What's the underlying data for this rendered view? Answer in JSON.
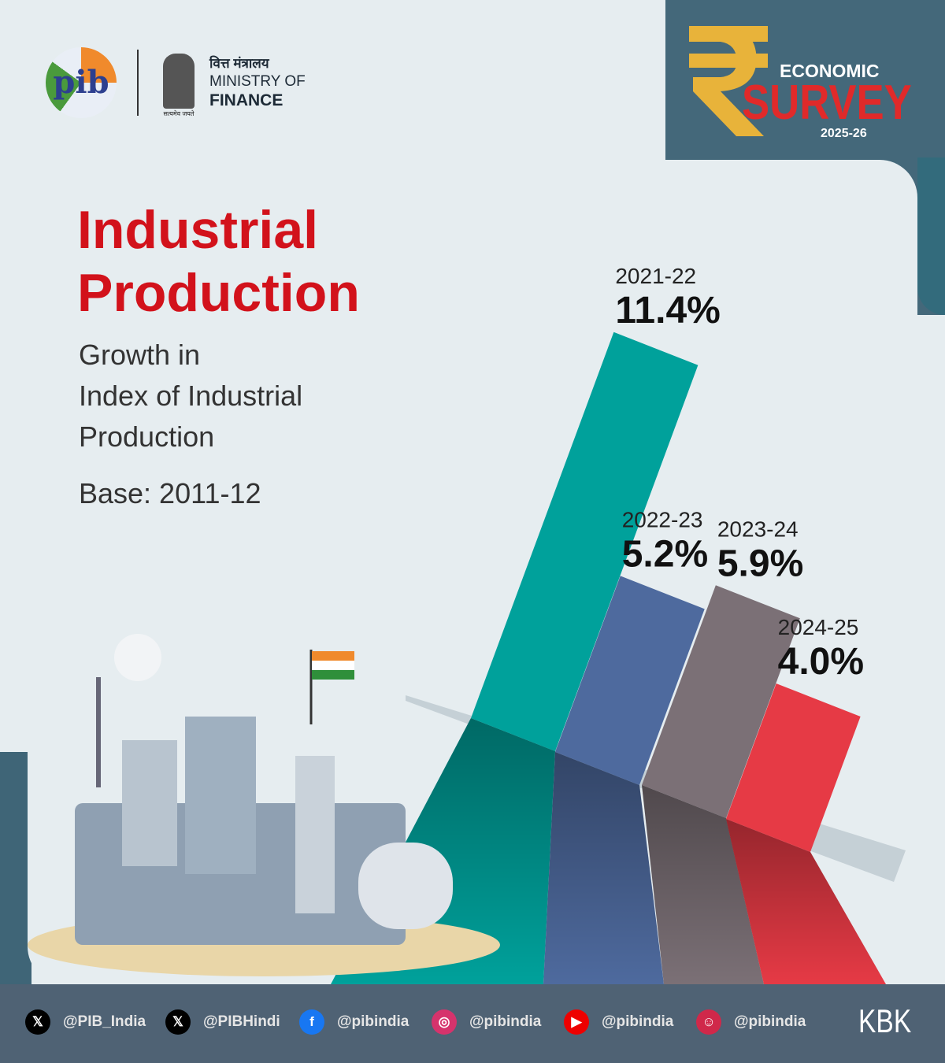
{
  "header": {
    "pib_logo": "pib",
    "ministry_hindi": "वित्त मंत्रालय",
    "ministry_line1": "MINISTRY OF",
    "ministry_line2": "FINANCE",
    "emblem_caption": "सत्यमेव जयते",
    "badge": {
      "line1": "ECONOMIC",
      "line2": "SURVEY",
      "year": "2025-26",
      "icon": "rupee-icon"
    }
  },
  "title": {
    "line1": "Industrial",
    "line2": "Production"
  },
  "subtitle": {
    "line1": "Growth in",
    "line2": "Index of Industrial",
    "line3": "Production"
  },
  "base": "Base: 2011-12",
  "chart_data": {
    "type": "bar",
    "title": "Growth in Index of Industrial Production",
    "categories": [
      "2021-22",
      "2022-23",
      "2023-24",
      "2024-25"
    ],
    "values": [
      11.4,
      5.2,
      5.9,
      4.0
    ],
    "labels": [
      "11.4%",
      "5.2%",
      "5.9%",
      "4.0%"
    ],
    "unit": "%",
    "colors": [
      "#00a19b",
      "#4e6a9e",
      "#7b7076",
      "#e63a45"
    ]
  },
  "footer": {
    "socials": [
      {
        "icon": "x-icon",
        "handle": "@PIB_India"
      },
      {
        "icon": "x-icon",
        "handle": "@PIBHindi"
      },
      {
        "icon": "facebook-icon",
        "handle": "@pibindia"
      },
      {
        "icon": "instagram-icon",
        "handle": "@pibindia"
      },
      {
        "icon": "youtube-icon",
        "handle": "@pibindia"
      },
      {
        "icon": "kooapp-icon",
        "handle": "@pibindia"
      }
    ],
    "signature": "KBK"
  }
}
